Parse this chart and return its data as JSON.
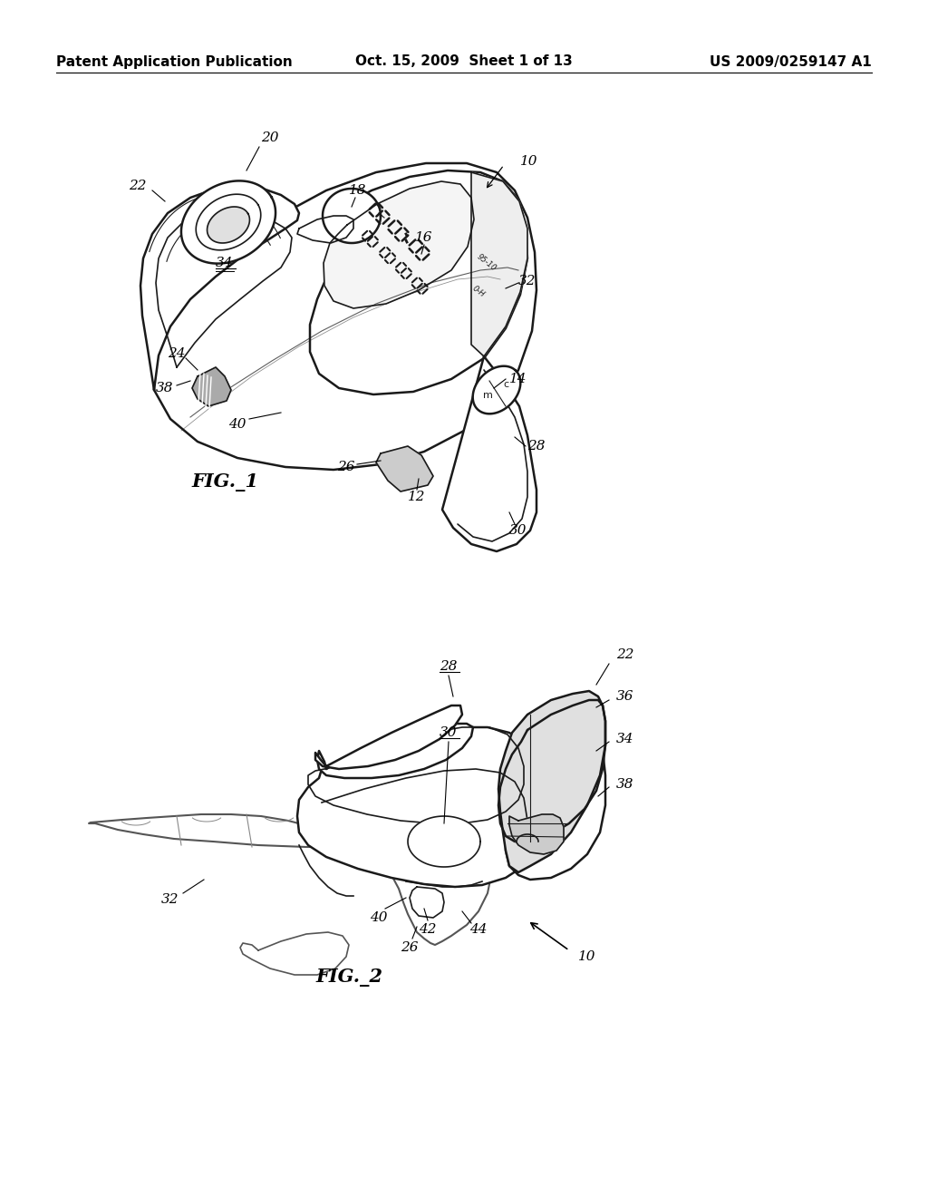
{
  "header_left": "Patent Application Publication",
  "header_mid": "Oct. 15, 2009  Sheet 1 of 13",
  "header_right": "US 2009/0259147 A1",
  "fig1_label": "FIG.– 1",
  "fig2_label": "FIG.– 2",
  "bg_color": "#ffffff",
  "line_color": "#1a1a1a",
  "lw_main": 1.8,
  "lw_inner": 1.2,
  "lw_thin": 0.8,
  "label_fontsize": 11,
  "header_fontsize": 11
}
